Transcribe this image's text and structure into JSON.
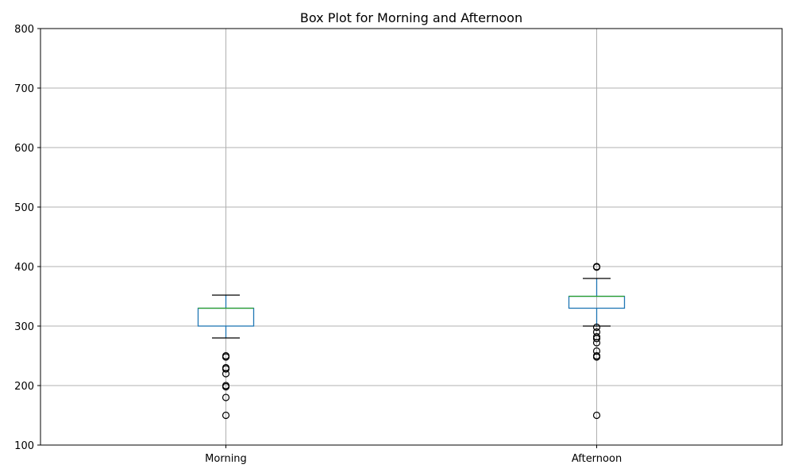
{
  "chart_data": {
    "type": "box",
    "title": "Box Plot for Morning and Afternoon",
    "xlabel": "",
    "ylabel": "",
    "ylim": [
      100,
      800
    ],
    "yticks": [
      100,
      200,
      300,
      400,
      500,
      600,
      700,
      800
    ],
    "grid": true,
    "categories": [
      "Morning",
      "Afternoon"
    ],
    "boxes": [
      {
        "category": "Morning",
        "whisker_low": 280,
        "q1": 300,
        "median": 330,
        "q3": 330,
        "whisker_high": 352,
        "fliers": [
          250,
          248,
          230,
          228,
          220,
          200,
          198,
          180,
          150
        ]
      },
      {
        "category": "Afternoon",
        "whisker_low": 300,
        "q1": 330,
        "median": 350,
        "q3": 350,
        "whisker_high": 380,
        "fliers": [
          400,
          399,
          298,
          290,
          282,
          279,
          272,
          258,
          250,
          248,
          150
        ]
      }
    ],
    "colors": {
      "box": "#1f77b4",
      "median": "#2ca02c",
      "cap": "#000000",
      "flier": "#000000",
      "grid": "#b0b0b0"
    }
  }
}
